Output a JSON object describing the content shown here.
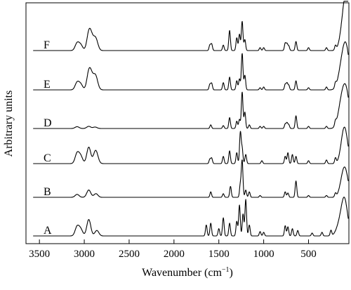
{
  "chart_data": {
    "type": "line",
    "xlabel_main": "Wavenumber (cm",
    "xlabel_sup": "−1",
    "xlabel_close": ")",
    "ylabel": "Arbitrary units",
    "xlim": [
      3650,
      50
    ],
    "x_reversed": true,
    "x_ticks": [
      3500,
      3000,
      2500,
      2000,
      1500,
      1000,
      500
    ],
    "y_ticks_shown": false,
    "grid": false,
    "legend": "none",
    "series": [
      {
        "name": "A",
        "peaks": [
          [
            3080,
            0.25
          ],
          [
            3040,
            0.18
          ],
          [
            2950,
            0.45
          ],
          [
            2860,
            0.15
          ],
          [
            1640,
            0.3
          ],
          [
            1590,
            0.35
          ],
          [
            1500,
            0.2
          ],
          [
            1450,
            0.5
          ],
          [
            1380,
            0.35
          ],
          [
            1300,
            0.4
          ],
          [
            1270,
            0.85
          ],
          [
            1230,
            0.6
          ],
          [
            1200,
            1.0
          ],
          [
            1160,
            0.3
          ],
          [
            1040,
            0.12
          ],
          [
            1000,
            0.1
          ],
          [
            760,
            0.28
          ],
          [
            730,
            0.25
          ],
          [
            680,
            0.2
          ],
          [
            620,
            0.15
          ],
          [
            460,
            0.08
          ],
          [
            350,
            0.1
          ],
          [
            250,
            0.15
          ],
          [
            160,
            0.25
          ],
          [
            100,
            1.0
          ]
        ]
      },
      {
        "name": "B",
        "peaks": [
          [
            3080,
            0.08
          ],
          [
            2950,
            0.2
          ],
          [
            2870,
            0.1
          ],
          [
            1590,
            0.15
          ],
          [
            1450,
            0.1
          ],
          [
            1370,
            0.3
          ],
          [
            1260,
            0.35
          ],
          [
            1240,
            1.0
          ],
          [
            1200,
            0.2
          ],
          [
            1160,
            0.15
          ],
          [
            1040,
            0.05
          ],
          [
            760,
            0.15
          ],
          [
            730,
            0.12
          ],
          [
            640,
            0.45
          ],
          [
            500,
            0.05
          ],
          [
            300,
            0.05
          ],
          [
            200,
            0.1
          ],
          [
            120,
            0.3
          ],
          [
            90,
            0.6
          ]
        ]
      },
      {
        "name": "C",
        "peaks": [
          [
            3080,
            0.28
          ],
          [
            3040,
            0.2
          ],
          [
            2950,
            0.45
          ],
          [
            2880,
            0.25
          ],
          [
            2860,
            0.15
          ],
          [
            1600,
            0.12
          ],
          [
            1580,
            0.15
          ],
          [
            1450,
            0.2
          ],
          [
            1380,
            0.35
          ],
          [
            1300,
            0.3
          ],
          [
            1260,
            0.85
          ],
          [
            1240,
            0.4
          ],
          [
            1200,
            0.25
          ],
          [
            1020,
            0.08
          ],
          [
            760,
            0.2
          ],
          [
            730,
            0.3
          ],
          [
            680,
            0.25
          ],
          [
            640,
            0.2
          ],
          [
            500,
            0.08
          ],
          [
            300,
            0.1
          ],
          [
            200,
            0.15
          ],
          [
            100,
            1.0
          ]
        ]
      },
      {
        "name": "D",
        "peaks": [
          [
            3080,
            0.05
          ],
          [
            2950,
            0.06
          ],
          [
            2880,
            0.04
          ],
          [
            1590,
            0.1
          ],
          [
            1450,
            0.08
          ],
          [
            1380,
            0.3
          ],
          [
            1300,
            0.2
          ],
          [
            1270,
            0.25
          ],
          [
            1240,
            1.0
          ],
          [
            1210,
            0.45
          ],
          [
            1160,
            0.1
          ],
          [
            1040,
            0.06
          ],
          [
            1000,
            0.06
          ],
          [
            760,
            0.12
          ],
          [
            740,
            0.15
          ],
          [
            720,
            0.1
          ],
          [
            640,
            0.35
          ],
          [
            500,
            0.06
          ],
          [
            300,
            0.06
          ],
          [
            200,
            0.12
          ],
          [
            140,
            0.5
          ],
          [
            100,
            0.55
          ],
          [
            70,
            0.6
          ]
        ]
      },
      {
        "name": "E",
        "peaks": [
          [
            3080,
            0.2
          ],
          [
            3040,
            0.15
          ],
          [
            2950,
            0.45
          ],
          [
            2920,
            0.3
          ],
          [
            2880,
            0.3
          ],
          [
            2860,
            0.12
          ],
          [
            1600,
            0.15
          ],
          [
            1580,
            0.18
          ],
          [
            1450,
            0.2
          ],
          [
            1380,
            0.35
          ],
          [
            1300,
            0.25
          ],
          [
            1270,
            0.3
          ],
          [
            1240,
            1.0
          ],
          [
            1210,
            0.4
          ],
          [
            1040,
            0.06
          ],
          [
            1000,
            0.08
          ],
          [
            760,
            0.15
          ],
          [
            740,
            0.18
          ],
          [
            720,
            0.12
          ],
          [
            640,
            0.25
          ],
          [
            500,
            0.06
          ],
          [
            300,
            0.08
          ],
          [
            200,
            0.12
          ],
          [
            140,
            0.4
          ],
          [
            100,
            0.6
          ],
          [
            70,
            0.7
          ]
        ]
      },
      {
        "name": "F",
        "peaks": [
          [
            3080,
            0.2
          ],
          [
            3040,
            0.15
          ],
          [
            2950,
            0.45
          ],
          [
            2920,
            0.3
          ],
          [
            2880,
            0.25
          ],
          [
            2860,
            0.12
          ],
          [
            1600,
            0.15
          ],
          [
            1580,
            0.18
          ],
          [
            1450,
            0.15
          ],
          [
            1380,
            0.55
          ],
          [
            1300,
            0.35
          ],
          [
            1270,
            0.45
          ],
          [
            1240,
            0.8
          ],
          [
            1210,
            0.3
          ],
          [
            1040,
            0.08
          ],
          [
            1000,
            0.08
          ],
          [
            760,
            0.2
          ],
          [
            740,
            0.18
          ],
          [
            720,
            0.12
          ],
          [
            640,
            0.25
          ],
          [
            500,
            0.08
          ],
          [
            300,
            0.08
          ],
          [
            200,
            0.12
          ],
          [
            120,
            0.35
          ],
          [
            90,
            0.7
          ],
          [
            60,
            0.95
          ]
        ]
      }
    ]
  }
}
